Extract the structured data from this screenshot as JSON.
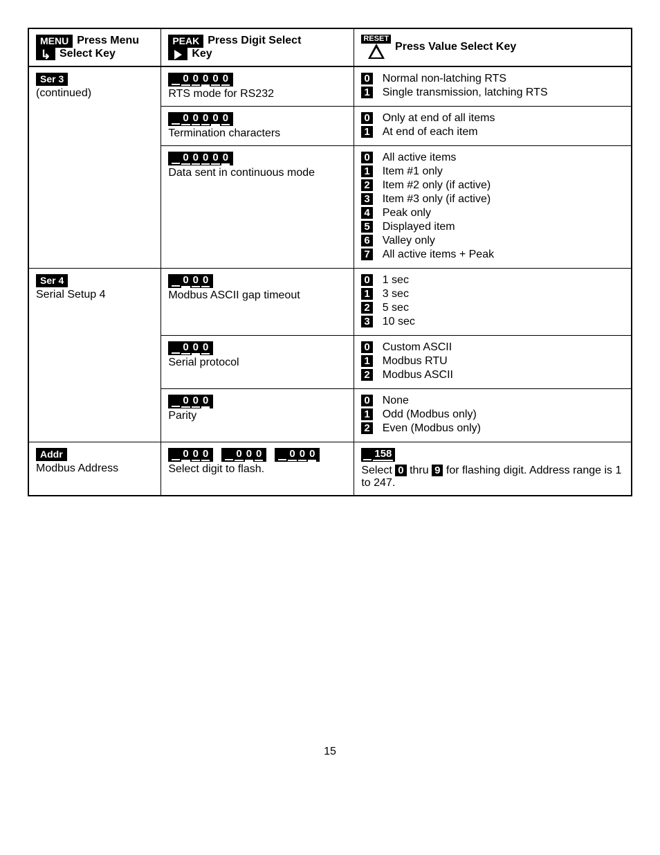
{
  "header": {
    "menu_chip": "MENU",
    "menu_text1": "Press Menu",
    "menu_text2": "Select Key",
    "peak_chip": "PEAK",
    "peak_text1": "Press Digit Select",
    "peak_text2": "Key",
    "reset_chip": "RESET",
    "reset_text": "Press Value Select Key"
  },
  "rows": {
    "ser3": {
      "label_chip": "Ser 3",
      "label_sub": "(continued)",
      "r1": {
        "disp_slots": 5,
        "disp_highlight_index": 3,
        "disp_highlight_char": "0",
        "other_char": "0",
        "desc": "RTS mode for RS232",
        "vals": [
          {
            "k": "0",
            "t": "Normal non-latching RTS"
          },
          {
            "k": "1",
            "t": "Single transmission, latching RTS"
          }
        ]
      },
      "r2": {
        "disp_slots": 5,
        "disp_highlight_index": 4,
        "disp_highlight_char": "0",
        "other_char": "0",
        "desc": "Termination characters",
        "vals": [
          {
            "k": "0",
            "t": "Only at end of all items"
          },
          {
            "k": "1",
            "t": "At end of each item"
          }
        ]
      },
      "r3": {
        "disp_slots": 5,
        "disp_highlight_index": 5,
        "disp_highlight_char": "0",
        "other_char": "0",
        "desc": "Data sent in continuous mode",
        "vals": [
          {
            "k": "0",
            "t": "All active items"
          },
          {
            "k": "1",
            "t": "Item #1 only"
          },
          {
            "k": "2",
            "t": "Item #2 only (if active)"
          },
          {
            "k": "3",
            "t": "Item #3 only (if active)"
          },
          {
            "k": "4",
            "t": "Peak only"
          },
          {
            "k": "5",
            "t": "Displayed item"
          },
          {
            "k": "6",
            "t": "Valley only"
          },
          {
            "k": "7",
            "t": "All active items + Peak"
          }
        ]
      }
    },
    "ser4": {
      "label_chip": "Ser 4",
      "label_sub": "Serial Setup 4",
      "r1": {
        "disp_slots": 3,
        "disp_highlight_index": 1,
        "disp_highlight_char": "0",
        "other_char": "0",
        "desc": "Modbus ASCII gap timeout",
        "vals": [
          {
            "k": "0",
            "t": "1 sec"
          },
          {
            "k": "1",
            "t": "3 sec"
          },
          {
            "k": "2",
            "t": "5 sec"
          },
          {
            "k": "3",
            "t": "10 sec"
          }
        ]
      },
      "r2": {
        "disp_slots": 3,
        "disp_highlight_index": 2,
        "disp_highlight_char": "0",
        "other_char": "0",
        "desc": "Serial protocol",
        "vals": [
          {
            "k": "0",
            "t": "Custom ASCII"
          },
          {
            "k": "1",
            "t": "Modbus RTU"
          },
          {
            "k": "2",
            "t": "Modbus ASCII"
          }
        ]
      },
      "r3": {
        "disp_slots": 3,
        "disp_highlight_index": 3,
        "disp_highlight_char": "0",
        "other_char": "0",
        "desc": "Parity",
        "vals": [
          {
            "k": "0",
            "t": "None"
          },
          {
            "k": "1",
            "t": "Odd (Modbus only)"
          },
          {
            "k": "2",
            "t": "Even (Modbus only)"
          }
        ]
      }
    },
    "addr": {
      "label_chip": "Addr",
      "label_sub": "Modbus Address",
      "disp_groups": [
        {
          "slots": 3,
          "hi_index": 1,
          "hi_char": "0",
          "oc": "0"
        },
        {
          "slots": 3,
          "hi_index": 2,
          "hi_char": "0",
          "oc": "0"
        },
        {
          "slots": 3,
          "hi_index": 3,
          "hi_char": "0",
          "oc": "0"
        }
      ],
      "desc": "Select digit to flash.",
      "val_chip": "158",
      "val_text_pre": "Select ",
      "val_k1": "0",
      "val_mid": " thru ",
      "val_k2": "9",
      "val_text_post": " for flashing digit. Address range is 1 to 247."
    }
  },
  "page_num": "15"
}
